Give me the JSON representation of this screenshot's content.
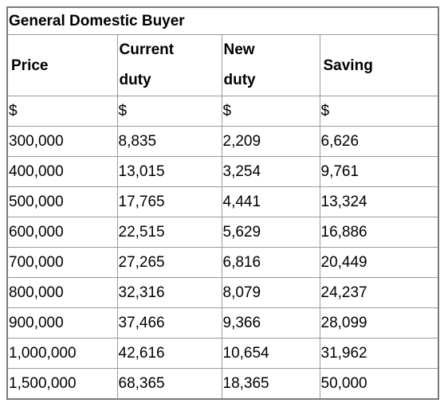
{
  "header": {
    "title": "General Domestic Buyer"
  },
  "table": {
    "columns": [
      "Price",
      "Current duty",
      "New duty",
      "Saving"
    ],
    "rows": [
      [
        "$",
        "$",
        "$",
        "$"
      ],
      [
        "300,000",
        "8,835",
        "2,209",
        "6,626"
      ],
      [
        "400,000",
        "13,015",
        "3,254",
        "9,761"
      ],
      [
        "500,000",
        "17,765",
        "4,441",
        "13,324"
      ],
      [
        "600,000",
        "22,515",
        "5,629",
        "16,886"
      ],
      [
        "700,000",
        "27,265",
        "6,816",
        "20,449"
      ],
      [
        "800,000",
        "32,316",
        "8,079",
        "24,237"
      ],
      [
        "900,000",
        "37,466",
        "9,366",
        "28,099"
      ],
      [
        "1,000,000",
        "42,616",
        "10,654",
        "31,962"
      ],
      [
        "1,500,000",
        "68,365",
        "18,365",
        "50,000"
      ]
    ]
  }
}
